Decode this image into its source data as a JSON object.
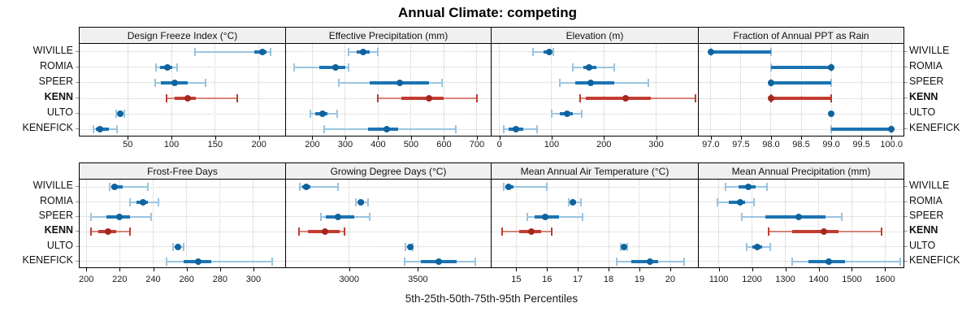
{
  "title": "Annual Climate: competing",
  "caption": "5th-25th-50th-75th-95th Percentiles",
  "stations": [
    "WIVILLE",
    "ROMIA",
    "SPEER",
    "KENN",
    "ULTO",
    "KENEFICK"
  ],
  "highlight_station": "KENN",
  "colors": {
    "blue_bar": "#1B73B3",
    "blue_light": "#9AC4E0",
    "blue_dot": "#0F639C",
    "red_bar": "#C23B31",
    "red_light": "#D5837B",
    "red_dot": "#A6271D",
    "strip_bg": "#F0F0F0",
    "grid": "#C9C9C9",
    "panel_border": "#000000"
  },
  "chart_data": {
    "type": "dotplot-intervals",
    "layout": "2-row by 4-column trellis",
    "percentiles": [
      5,
      25,
      50,
      75,
      95
    ],
    "legend": "dot = median, thick bar = 25th-75th, thin line with caps = 5th-95th",
    "panels": [
      {
        "title": "Design Freeze Index (°C)",
        "row": 0,
        "col": 0,
        "xlim": [
          -5,
          230
        ],
        "ticks": [
          50,
          100,
          150,
          200
        ],
        "tick_labels": [
          "50",
          "100",
          "150",
          "200"
        ],
        "series": [
          {
            "station": "WIVILLE",
            "values": [
              127,
              195,
              204,
              209,
              213
            ]
          },
          {
            "station": "ROMIA",
            "values": [
              82,
              87,
              95,
              101,
              106
            ]
          },
          {
            "station": "SPEER",
            "values": [
              81,
              88,
              104,
              119,
              139
            ]
          },
          {
            "station": "KENN",
            "values": [
              94,
              104,
              119,
              128,
              175
            ]
          },
          {
            "station": "ULTO",
            "values": [
              37,
              39,
              41,
              44,
              46
            ]
          },
          {
            "station": "KENEFICK",
            "values": [
              11,
              14,
              18,
              28,
              38
            ]
          }
        ]
      },
      {
        "title": "Effective Precipitation (mm)",
        "row": 0,
        "col": 1,
        "xlim": [
          120,
          742
        ],
        "ticks": [
          200,
          300,
          400,
          500,
          600,
          700
        ],
        "tick_labels": [
          "200",
          "300",
          "400",
          "500",
          "600",
          "700"
        ],
        "series": [
          {
            "station": "WIVILLE",
            "values": [
              310,
              335,
              355,
              375,
              400
            ]
          },
          {
            "station": "ROMIA",
            "values": [
              145,
              220,
              270,
              300,
              310
            ]
          },
          {
            "station": "SPEER",
            "values": [
              280,
              375,
              465,
              555,
              595
            ]
          },
          {
            "station": "KENN",
            "values": [
              400,
              470,
              555,
              600,
              700
            ]
          },
          {
            "station": "ULTO",
            "values": [
              195,
              210,
              230,
              245,
              275
            ]
          },
          {
            "station": "KENEFICK",
            "values": [
              235,
              370,
              425,
              460,
              635
            ]
          }
        ]
      },
      {
        "title": "Elevation (m)",
        "row": 0,
        "col": 2,
        "xlim": [
          -15,
          380
        ],
        "ticks": [
          0,
          100,
          200,
          300
        ],
        "tick_labels": [
          "0",
          "100",
          "200",
          "300"
        ],
        "series": [
          {
            "station": "WIVILLE",
            "values": [
              65,
              85,
              95,
              100,
              103
            ]
          },
          {
            "station": "ROMIA",
            "values": [
              140,
              160,
              172,
              185,
              220
            ]
          },
          {
            "station": "SPEER",
            "values": [
              115,
              145,
              175,
              220,
              285
            ]
          },
          {
            "station": "KENN",
            "values": [
              155,
              165,
              242,
              290,
              375
            ]
          },
          {
            "station": "ULTO",
            "values": [
              100,
              115,
              130,
              140,
              158
            ]
          },
          {
            "station": "KENEFICK",
            "values": [
              8,
              18,
              32,
              45,
              72
            ]
          }
        ]
      },
      {
        "title": "Fraction of Annual PPT as Rain",
        "row": 0,
        "col": 3,
        "xlim": [
          96.8,
          100.2
        ],
        "ticks": [
          97.0,
          97.5,
          98.0,
          98.5,
          99.0,
          99.5,
          100.0
        ],
        "tick_labels": [
          "97.0",
          "97.5",
          "98.0",
          "98.5",
          "99.0",
          "99.5",
          "100.0"
        ],
        "series": [
          {
            "station": "WIVILLE",
            "values": [
              97,
              97,
              97,
              98,
              98
            ]
          },
          {
            "station": "ROMIA",
            "values": [
              98,
              98,
              99,
              99,
              99
            ]
          },
          {
            "station": "SPEER",
            "values": [
              98,
              98,
              98,
              99,
              99
            ]
          },
          {
            "station": "KENN",
            "values": [
              98,
              98,
              98,
              99,
              99
            ]
          },
          {
            "station": "ULTO",
            "values": [
              99,
              99,
              99,
              99,
              99
            ]
          },
          {
            "station": "KENEFICK",
            "values": [
              99,
              99,
              100,
              100,
              100
            ]
          }
        ]
      },
      {
        "title": "Frost-Free Days",
        "row": 1,
        "col": 0,
        "xlim": [
          196,
          319
        ],
        "ticks": [
          200,
          220,
          240,
          260,
          280,
          300
        ],
        "tick_labels": [
          "200",
          "220",
          "240",
          "260",
          "280",
          "300"
        ],
        "series": [
          {
            "station": "WIVILLE",
            "values": [
              214,
              215,
              217,
              222,
              237
            ]
          },
          {
            "station": "ROMIA",
            "values": [
              226,
              230,
              234,
              237,
              243
            ]
          },
          {
            "station": "SPEER",
            "values": [
              203,
              212,
              220,
              226,
              239
            ]
          },
          {
            "station": "KENN",
            "values": [
              203,
              207,
              213,
              218,
              226
            ]
          },
          {
            "station": "ULTO",
            "values": [
              252,
              254,
              255,
              256,
              258
            ]
          },
          {
            "station": "KENEFICK",
            "values": [
              248,
              258,
              267,
              275,
              311
            ]
          }
        ]
      },
      {
        "title": "Growing Degree Days (°C)",
        "row": 1,
        "col": 1,
        "xlim": [
          2540,
          4030
        ],
        "ticks": [
          3000,
          3500
        ],
        "tick_labels": [
          "3000",
          "3500"
        ],
        "series": [
          {
            "station": "WIVILLE",
            "values": [
              2640,
              2660,
              2690,
              2720,
              2920
            ]
          },
          {
            "station": "ROMIA",
            "values": [
              3050,
              3065,
              3086,
              3110,
              3138
            ]
          },
          {
            "station": "SPEER",
            "values": [
              2793,
              2828,
              2920,
              3034,
              3149
            ]
          },
          {
            "station": "KENN",
            "values": [
              2632,
              2700,
              2822,
              2930,
              2966
            ]
          },
          {
            "station": "ULTO",
            "values": [
              3408,
              3430,
              3445,
              3455,
              3460
            ]
          },
          {
            "station": "KENEFICK",
            "values": [
              3402,
              3520,
              3650,
              3780,
              3920
            ]
          }
        ]
      },
      {
        "title": "Mean Annual Air Temperature (°C)",
        "row": 1,
        "col": 2,
        "xlim": [
          14.2,
          20.9
        ],
        "ticks": [
          15,
          16,
          17,
          18,
          19,
          20
        ],
        "tick_labels": [
          "15",
          "16",
          "17",
          "18",
          "19",
          "20"
        ],
        "series": [
          {
            "station": "WIVILLE",
            "values": [
              14.6,
              14.65,
              14.75,
              14.9,
              16.0
            ]
          },
          {
            "station": "ROMIA",
            "values": [
              16.7,
              16.75,
              16.85,
              16.95,
              17.1
            ]
          },
          {
            "station": "SPEER",
            "values": [
              15.35,
              15.6,
              15.95,
              16.4,
              17.15
            ]
          },
          {
            "station": "KENN",
            "values": [
              14.55,
              15.1,
              15.5,
              15.8,
              16.15
            ]
          },
          {
            "station": "ULTO",
            "values": [
              18.4,
              18.45,
              18.5,
              18.55,
              18.6
            ]
          },
          {
            "station": "KENEFICK",
            "values": [
              18.25,
              18.75,
              19.35,
              19.6,
              20.45
            ]
          }
        ]
      },
      {
        "title": "Mean Annual Precipitation (mm)",
        "row": 1,
        "col": 3,
        "xlim": [
          1040,
          1655
        ],
        "ticks": [
          1100,
          1200,
          1300,
          1400,
          1500,
          1600
        ],
        "tick_labels": [
          "1100",
          "1200",
          "1300",
          "1400",
          "1500",
          "1600"
        ],
        "series": [
          {
            "station": "WIVILLE",
            "values": [
              1120,
              1160,
              1190,
              1210,
              1245
            ]
          },
          {
            "station": "ROMIA",
            "values": [
              1095,
              1130,
              1165,
              1180,
              1205
            ]
          },
          {
            "station": "SPEER",
            "values": [
              1170,
              1240,
              1340,
              1420,
              1470
            ]
          },
          {
            "station": "KENN",
            "values": [
              1250,
              1320,
              1415,
              1460,
              1590
            ]
          },
          {
            "station": "ULTO",
            "values": [
              1185,
              1200,
              1215,
              1230,
              1255
            ]
          },
          {
            "station": "KENEFICK",
            "values": [
              1320,
              1370,
              1430,
              1480,
              1645
            ]
          }
        ]
      }
    ]
  }
}
